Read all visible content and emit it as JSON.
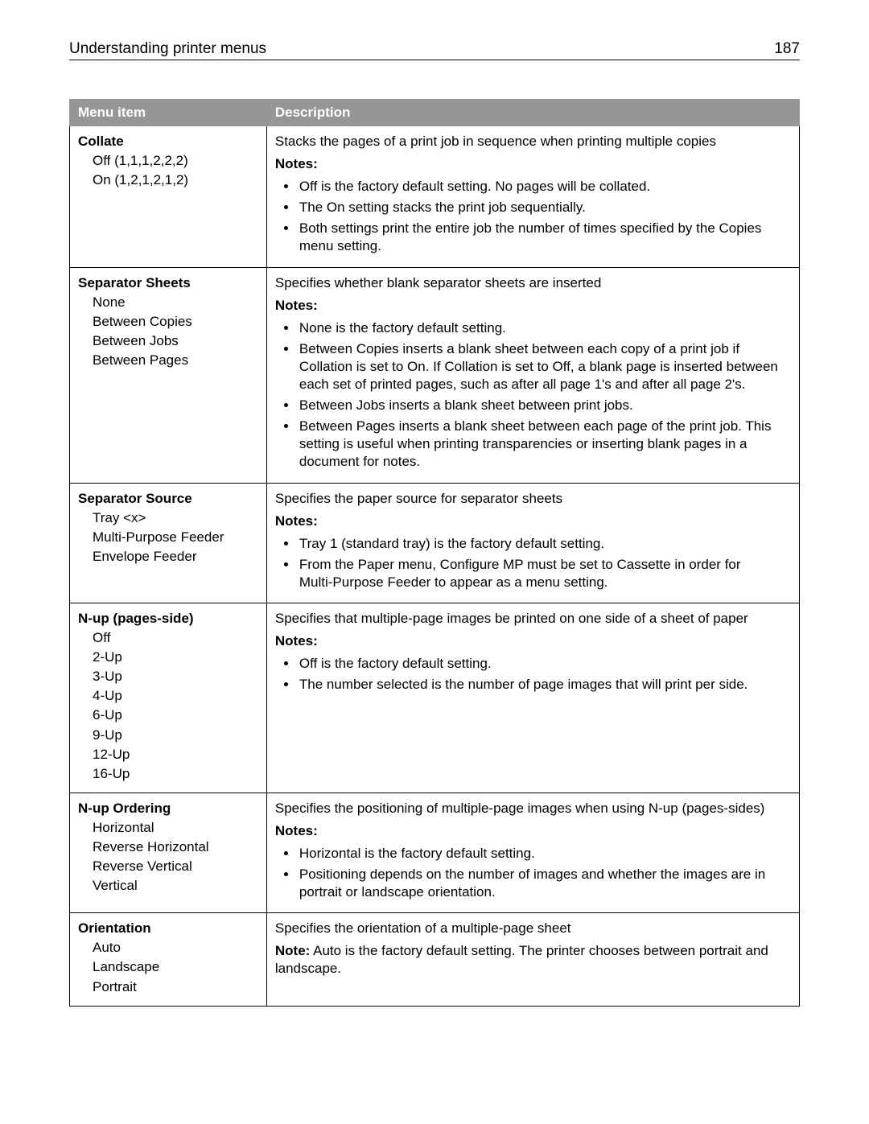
{
  "header": {
    "title": "Understanding printer menus",
    "page_number": "187"
  },
  "table": {
    "columns": [
      "Menu item",
      "Description"
    ],
    "col_widths_pct": [
      27,
      73
    ],
    "header_bg": "#969696",
    "header_fg": "#ffffff",
    "border_color": "#000000",
    "font_size_pt": 13,
    "rows": [
      {
        "name": "Collate",
        "options": [
          "Off (1,1,1,2,2,2)",
          "On (1,2,1,2,1,2)"
        ],
        "intro": "Stacks the pages of a print job in sequence when printing multiple copies",
        "notes_label": "Notes:",
        "notes": [
          "Off is the factory default setting. No pages will be collated.",
          "The On setting stacks the print job sequentially.",
          "Both settings print the entire job the number of times specified by the Copies menu setting."
        ]
      },
      {
        "name": "Separator Sheets",
        "options": [
          "None",
          "Between Copies",
          "Between Jobs",
          "Between Pages"
        ],
        "intro": "Specifies whether blank separator sheets are inserted",
        "notes_label": "Notes:",
        "notes": [
          "None is the factory default setting.",
          "Between Copies inserts a blank sheet between each copy of a print job if Collation is set to On. If Collation is set to Off, a blank page is inserted between each set of printed pages, such as after all page 1's and after all page 2's.",
          "Between Jobs inserts a blank sheet between print jobs.",
          "Between Pages inserts a blank sheet between each page of the print job. This setting is useful when printing transparencies or inserting blank pages in a document for notes."
        ]
      },
      {
        "name": "Separator Source",
        "options": [
          "Tray <x>",
          "Multi‑Purpose Feeder",
          "Envelope Feeder"
        ],
        "intro": "Specifies the paper source for separator sheets",
        "notes_label": "Notes:",
        "notes": [
          "Tray 1 (standard tray) is the factory default setting.",
          "From the Paper menu, Configure MP must be set to Cassette in order for Multi‑Purpose Feeder to appear as a menu setting."
        ]
      },
      {
        "name": "N‑up (pages‑side)",
        "options": [
          "Off",
          "2‑Up",
          "3‑Up",
          "4‑Up",
          "6‑Up",
          "9‑Up",
          "12‑Up",
          "16‑Up"
        ],
        "intro": "Specifies that multiple‑page images be printed on one side of a sheet of paper",
        "notes_label": "Notes:",
        "notes": [
          "Off is the factory default setting.",
          "The number selected is the number of page images that will print per side."
        ]
      },
      {
        "name": "N‑up Ordering",
        "options": [
          "Horizontal",
          "Reverse Horizontal",
          "Reverse Vertical",
          "Vertical"
        ],
        "intro": "Specifies the positioning of multiple‑page images when using N‑up (pages‑sides)",
        "notes_label": "Notes:",
        "notes": [
          "Horizontal is the factory default setting.",
          "Positioning depends on the number of images and whether the images are in portrait or landscape orientation."
        ]
      },
      {
        "name": "Orientation",
        "options": [
          "Auto",
          "Landscape",
          "Portrait"
        ],
        "intro": "Specifies the orientation of a multiple‑page sheet",
        "note_inline": {
          "label": "Note:",
          "text": " Auto is the factory default setting. The printer chooses between portrait and landscape."
        }
      }
    ]
  }
}
